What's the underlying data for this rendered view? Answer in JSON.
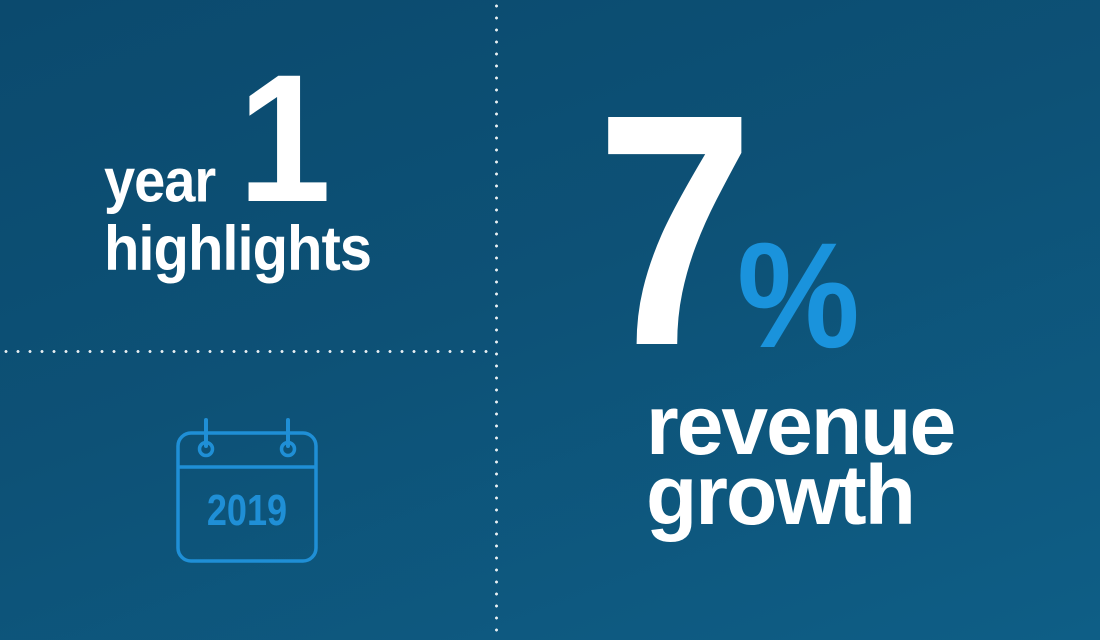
{
  "title": {
    "word_year": "year",
    "number": "1",
    "word_highlights": "highlights"
  },
  "calendar": {
    "icon": "calendar-icon",
    "year": "2019"
  },
  "stat": {
    "value": "7",
    "unit": "%",
    "label_line1": "revenue",
    "label_line2": "growth"
  },
  "colors": {
    "background_start": "#0b4a6e",
    "background_end": "#0e5e86",
    "text": "#ffffff",
    "accent": "#1a93dc"
  }
}
